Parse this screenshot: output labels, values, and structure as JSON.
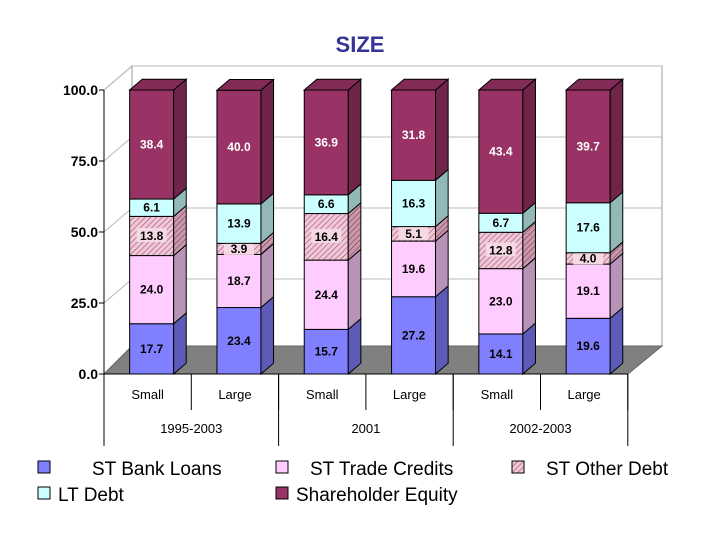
{
  "chart_data": {
    "type": "bar",
    "stacked": true,
    "title": "SIZE",
    "ylim": [
      0,
      100
    ],
    "yticks": [
      "0.0",
      "25.0",
      "50.0",
      "75.0",
      "100.0"
    ],
    "categories": [
      "Small",
      "Large",
      "Small",
      "Large",
      "Small",
      "Large"
    ],
    "groups": [
      {
        "label": "1995-2003",
        "span": 2
      },
      {
        "label": "2001",
        "span": 2
      },
      {
        "label": "2002-2003",
        "span": 2
      }
    ],
    "series": [
      {
        "name": "ST Bank Loans",
        "color": "#8080ff",
        "values": [
          17.7,
          23.4,
          15.7,
          27.2,
          14.1,
          19.6
        ]
      },
      {
        "name": "ST Trade Credits",
        "color": "#ffccff",
        "values": [
          24.0,
          18.7,
          24.4,
          19.6,
          23.0,
          19.1
        ]
      },
      {
        "name": "ST Other Debt",
        "color": "#e8b8cc",
        "pattern": "hatch",
        "values": [
          13.8,
          3.9,
          16.4,
          5.1,
          12.8,
          4.0
        ]
      },
      {
        "name": "LT Debt",
        "color": "#ccffff",
        "values": [
          6.1,
          13.9,
          6.6,
          16.3,
          6.7,
          17.6
        ]
      },
      {
        "name": "Shareholder Equity",
        "color": "#993366",
        "values": [
          38.4,
          40.0,
          36.9,
          31.8,
          43.4,
          39.7
        ]
      }
    ],
    "legend_position": "bottom"
  }
}
